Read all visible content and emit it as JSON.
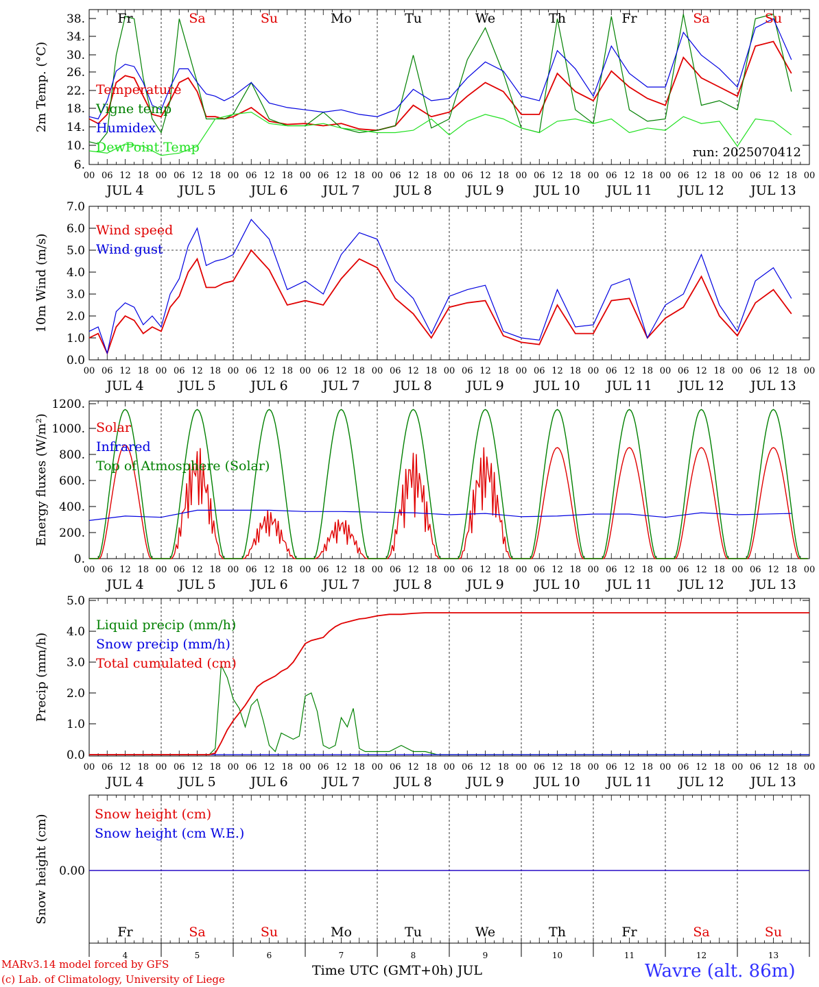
{
  "days": [
    "JUL 4",
    "JUL 5",
    "JUL 6",
    "JUL 7",
    "JUL 8",
    "JUL 9",
    "JUL 10",
    "JUL 11",
    "JUL 12",
    "JUL 13"
  ],
  "weekdays": [
    "Fr",
    "Sa",
    "Su",
    "Mo",
    "Tu",
    "We",
    "Th",
    "Fr",
    "Sa",
    "Su"
  ],
  "weekday_colors": [
    "#000000",
    "#e00000",
    "#e00000",
    "#000000",
    "#000000",
    "#000000",
    "#000000",
    "#000000",
    "#e00000",
    "#e00000"
  ],
  "day_numbers": [
    "4",
    "5",
    "6",
    "7",
    "8",
    "9",
    "10",
    "11",
    "12",
    "13"
  ],
  "hour_labels": [
    "00",
    "06",
    "12",
    "18"
  ],
  "colors": {
    "red": "#e00000",
    "blue": "#0000e0",
    "green": "#008000",
    "lightgreen": "#20e020"
  },
  "footer": {
    "credit_line1": "MARv3.14 model forced by GFS",
    "credit_line2": "(c) Lab. of Climatology, University of Liege",
    "axis_label": "Time UTC (GMT+0h) JUL",
    "station": "Wavre (alt. 86m)"
  },
  "chart_data": [
    {
      "type": "line",
      "ylabel": "2m Temp. (°C)",
      "ylim": [
        6,
        40
      ],
      "yticks": [
        "6.",
        "10.",
        "14.",
        "18.",
        "22.",
        "26.",
        "30.",
        "34.",
        "38."
      ],
      "run_label": "run: 2025070412",
      "x_unit": "hours from JUL 4 00 UTC",
      "series": [
        {
          "name": "Temperature",
          "color": "red",
          "x": [
            0,
            3,
            6,
            9,
            12,
            15,
            18,
            21,
            24,
            27,
            30,
            33,
            36,
            39,
            42,
            45,
            48,
            54,
            60,
            66,
            72,
            78,
            84,
            90,
            96,
            102,
            108,
            114,
            120,
            126,
            132,
            138,
            144,
            150,
            156,
            162,
            168,
            174,
            180,
            186,
            192,
            198,
            204,
            210,
            216,
            222,
            228,
            234
          ],
          "y": [
            16,
            15,
            17,
            24,
            25.5,
            25,
            21,
            17,
            16.5,
            20,
            24,
            25,
            22,
            16.5,
            16.5,
            16,
            16.5,
            18.5,
            15.5,
            14.8,
            15,
            14.5,
            15,
            13.8,
            13.5,
            14.5,
            19,
            16.5,
            17.5,
            21,
            24,
            22,
            17,
            17,
            26,
            22,
            20,
            26.5,
            23,
            20.5,
            19,
            29.5,
            25,
            23,
            21,
            32,
            33,
            26
          ]
        },
        {
          "name": "Vigne temp",
          "color": "green",
          "x": [
            0,
            3,
            6,
            9,
            12,
            15,
            18,
            21,
            24,
            27,
            30,
            33,
            36,
            39,
            42,
            45,
            48,
            54,
            60,
            66,
            72,
            78,
            84,
            90,
            96,
            102,
            108,
            114,
            120,
            126,
            132,
            138,
            144,
            150,
            156,
            162,
            168,
            174,
            180,
            186,
            192,
            198,
            204,
            210,
            216,
            222,
            228,
            234
          ],
          "y": [
            11,
            10.5,
            13,
            30,
            38.5,
            38,
            25,
            16,
            13,
            20,
            38,
            31,
            24,
            16,
            16,
            16,
            17,
            24,
            16,
            14.5,
            14.5,
            17.5,
            14,
            13,
            13.5,
            14.5,
            30,
            14,
            16,
            29,
            36,
            26,
            14,
            13,
            38,
            18,
            15,
            38.5,
            18,
            15.5,
            16,
            39,
            19,
            20,
            18,
            38,
            39,
            22
          ]
        },
        {
          "name": "Humidex",
          "color": "blue",
          "x": [
            0,
            3,
            6,
            9,
            12,
            15,
            18,
            21,
            24,
            27,
            30,
            33,
            36,
            39,
            42,
            45,
            48,
            54,
            60,
            66,
            72,
            78,
            84,
            90,
            96,
            102,
            108,
            114,
            120,
            126,
            132,
            138,
            144,
            150,
            156,
            162,
            168,
            174,
            180,
            186,
            192,
            198,
            204,
            210,
            216,
            222,
            228,
            234
          ],
          "y": [
            16.5,
            16,
            20,
            26.5,
            28,
            27.5,
            24,
            19,
            18,
            23,
            27,
            27,
            24,
            21.5,
            21,
            20,
            21,
            24,
            19.5,
            18.5,
            18,
            17.5,
            18,
            17,
            16.5,
            18,
            22.5,
            20,
            20.5,
            25,
            28.5,
            26.5,
            21,
            20,
            31,
            27,
            21,
            32,
            26,
            23,
            23,
            35,
            30,
            27,
            23,
            36,
            38,
            29
          ]
        },
        {
          "name": "DewPoint Temp",
          "color": "lightgreen",
          "x": [
            0,
            6,
            12,
            18,
            24,
            30,
            36,
            42,
            48,
            54,
            60,
            66,
            72,
            78,
            84,
            90,
            96,
            102,
            108,
            114,
            120,
            126,
            132,
            138,
            144,
            150,
            156,
            162,
            168,
            174,
            180,
            186,
            192,
            198,
            204,
            210,
            216,
            222,
            228,
            234
          ],
          "y": [
            9,
            8.5,
            10.5,
            10,
            8,
            8.5,
            10,
            16,
            17,
            17.5,
            15,
            14.5,
            14.5,
            15,
            14,
            13.5,
            13,
            13,
            13.5,
            16,
            12.5,
            15.5,
            17,
            16,
            14,
            13,
            15.5,
            16,
            15,
            16,
            13,
            14,
            13.5,
            16.5,
            15,
            15.5,
            10,
            16,
            15.5,
            12.5
          ]
        }
      ]
    },
    {
      "type": "line",
      "ylabel": "10m Wind (m/s)",
      "ylim": [
        0,
        7
      ],
      "yticks": [
        "0.0",
        "1.0",
        "2.0",
        "3.0",
        "4.0",
        "5.0",
        "6.0",
        "7.0"
      ],
      "reference_line": 5,
      "series": [
        {
          "name": "Wind speed",
          "color": "red",
          "x": [
            0,
            3,
            6,
            9,
            12,
            15,
            18,
            21,
            24,
            27,
            30,
            33,
            36,
            39,
            42,
            45,
            48,
            54,
            60,
            66,
            72,
            78,
            84,
            90,
            96,
            102,
            108,
            114,
            120,
            126,
            132,
            138,
            144,
            150,
            156,
            162,
            168,
            174,
            180,
            186,
            192,
            198,
            204,
            210,
            216,
            222,
            228,
            234
          ],
          "y": [
            1,
            1.2,
            0.3,
            1.5,
            2,
            1.8,
            1.2,
            1.5,
            1.3,
            2.4,
            2.9,
            4,
            4.6,
            3.3,
            3.3,
            3.5,
            3.6,
            5,
            4.1,
            2.5,
            2.7,
            2.5,
            3.7,
            4.6,
            4.2,
            2.8,
            2.1,
            1,
            2.4,
            2.6,
            2.7,
            1.1,
            0.8,
            0.7,
            2.5,
            1.2,
            1.2,
            2.7,
            2.8,
            1,
            1.9,
            2.4,
            3.8,
            2,
            1.1,
            2.6,
            3.2,
            2.1
          ]
        },
        {
          "name": "Wind gust",
          "color": "blue",
          "x": [
            0,
            3,
            6,
            9,
            12,
            15,
            18,
            21,
            24,
            27,
            30,
            33,
            36,
            39,
            42,
            45,
            48,
            54,
            60,
            66,
            72,
            78,
            84,
            90,
            96,
            102,
            108,
            114,
            120,
            126,
            132,
            138,
            144,
            150,
            156,
            162,
            168,
            174,
            180,
            186,
            192,
            198,
            204,
            210,
            216,
            222,
            228,
            234
          ],
          "y": [
            1.3,
            1.5,
            0.3,
            2.2,
            2.6,
            2.4,
            1.6,
            2,
            1.5,
            3,
            3.7,
            5.2,
            6,
            4.3,
            4.5,
            4.6,
            4.8,
            6.4,
            5.5,
            3.2,
            3.6,
            3,
            4.8,
            5.8,
            5.5,
            3.6,
            2.8,
            1.2,
            2.9,
            3.2,
            3.4,
            1.3,
            1,
            0.9,
            3.2,
            1.5,
            1.6,
            3.4,
            3.7,
            1,
            2.5,
            3,
            4.8,
            2.5,
            1.3,
            3.6,
            4.2,
            2.8
          ]
        }
      ]
    },
    {
      "type": "line",
      "ylabel": "Energy fluxes (W/m²)",
      "ylim": [
        0,
        1200
      ],
      "yticks": [
        "0.",
        "200.",
        "400.",
        "600.",
        "800.",
        "1000.",
        "1200."
      ],
      "series": [
        {
          "name": "Solar",
          "color": "red",
          "peaks": [
            880,
            880,
            380,
            320,
            840,
            870,
            860,
            860,
            860,
            860
          ]
        },
        {
          "name": "Infrared",
          "color": "blue",
          "x": [
            0,
            12,
            24,
            36,
            48,
            60,
            72,
            84,
            96,
            108,
            120,
            132,
            144,
            156,
            168,
            180,
            192,
            204,
            216,
            234
          ],
          "y": [
            295,
            330,
            320,
            375,
            375,
            375,
            365,
            365,
            360,
            355,
            340,
            350,
            325,
            330,
            345,
            345,
            320,
            355,
            340,
            350
          ]
        },
        {
          "name": "Top of Atmosphere (Solar)",
          "color": "green",
          "peaks": [
            1155,
            1155,
            1155,
            1155,
            1155,
            1155,
            1155,
            1155,
            1155,
            1155
          ]
        }
      ]
    },
    {
      "type": "line",
      "ylabel": "Precip (mm/h)",
      "ylim": [
        0,
        5
      ],
      "yticks": [
        "0.0",
        "1.0",
        "2.0",
        "3.0",
        "4.0",
        "5.0"
      ],
      "series": [
        {
          "name": "Liquid precip (mm/h)",
          "color": "green",
          "x": [
            0,
            36,
            40,
            42,
            44,
            46,
            48,
            50,
            52,
            54,
            56,
            58,
            60,
            62,
            64,
            66,
            68,
            70,
            72,
            74,
            76,
            78,
            80,
            82,
            84,
            86,
            88,
            90,
            92,
            96,
            100,
            104,
            108,
            112,
            116,
            120,
            130,
            240
          ],
          "y": [
            0,
            0,
            0,
            0.2,
            2.9,
            2.5,
            1.8,
            1.5,
            0.9,
            1.6,
            1.8,
            1.1,
            0.3,
            0.1,
            0.7,
            0.6,
            0.5,
            0.6,
            1.9,
            2.0,
            1.4,
            0.3,
            0.2,
            0.3,
            1.2,
            0.9,
            1.5,
            0.2,
            0.1,
            0.1,
            0.1,
            0.3,
            0.1,
            0.1,
            0,
            0,
            0,
            0
          ]
        },
        {
          "name": "Snow precip (mm/h)",
          "color": "blue",
          "x": [
            0,
            240
          ],
          "y": [
            0,
            0
          ]
        },
        {
          "name": "Total cumulated (cm)",
          "color": "red",
          "x": [
            0,
            40,
            42,
            44,
            46,
            48,
            50,
            52,
            54,
            56,
            58,
            60,
            62,
            64,
            66,
            68,
            70,
            72,
            74,
            76,
            78,
            80,
            82,
            84,
            86,
            88,
            90,
            92,
            96,
            100,
            104,
            108,
            112,
            116,
            120,
            130,
            240
          ],
          "y": [
            0,
            0,
            0.05,
            0.4,
            0.8,
            1.1,
            1.35,
            1.6,
            1.9,
            2.2,
            2.35,
            2.45,
            2.55,
            2.7,
            2.8,
            3.0,
            3.3,
            3.6,
            3.7,
            3.75,
            3.8,
            4.0,
            4.15,
            4.25,
            4.3,
            4.35,
            4.4,
            4.42,
            4.5,
            4.55,
            4.55,
            4.58,
            4.6,
            4.6,
            4.6,
            4.6,
            4.6
          ]
        }
      ]
    },
    {
      "type": "line",
      "ylabel": "Snow height (cm)",
      "ylim": [
        -1,
        1
      ],
      "yticks": [
        "0.00"
      ],
      "series": [
        {
          "name": "Snow height (cm)",
          "color": "red",
          "x": [
            0,
            240
          ],
          "y": [
            0,
            0
          ]
        },
        {
          "name": "Snow height (cm W.E.)",
          "color": "blue",
          "x": [
            0,
            240
          ],
          "y": [
            0,
            0
          ]
        }
      ]
    }
  ]
}
